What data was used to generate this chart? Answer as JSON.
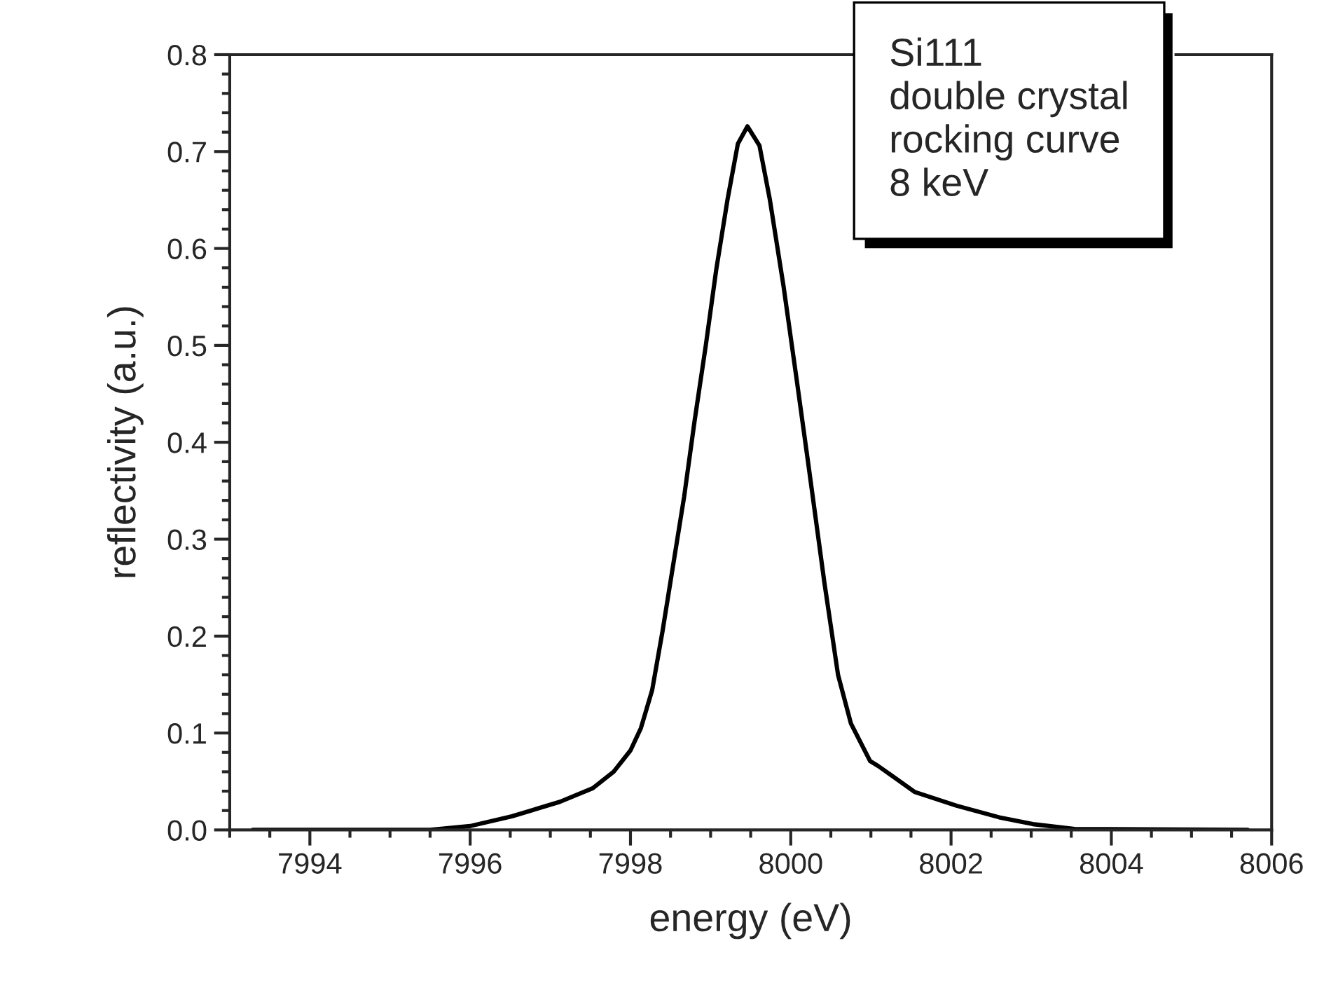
{
  "chart_data": {
    "type": "line",
    "xlabel": "energy (eV)",
    "ylabel": "reflectivity (a.u.)",
    "annotations": [
      "Si111\ndouble crystal\nrocking curve\n8 keV"
    ],
    "xlim": [
      7993,
      8006
    ],
    "xticks": [
      7994,
      7996,
      7998,
      8000,
      8002,
      8004,
      8006
    ],
    "ylim": [
      0,
      0.8
    ],
    "yticks": [
      {
        "value": 0,
        "label": "0.0"
      },
      0.1,
      0.2,
      0.3,
      0.4,
      0.5,
      0.6,
      0.7,
      0.8
    ],
    "grid": false,
    "legend": false,
    "marker": "none",
    "line_style": "solid",
    "series": [
      {
        "color": "#000000",
        "x": [
          7993.29,
          7995.5,
          7996.0,
          7996.52,
          7997.12,
          7997.53,
          7997.79,
          7998.0,
          7998.13,
          7998.27,
          7998.4,
          7998.53,
          7998.67,
          7998.8,
          7998.94,
          7999.07,
          7999.21,
          7999.34,
          7999.46,
          7999.61,
          7999.74,
          7999.91,
          8000.08,
          8000.22,
          8000.42,
          8000.59,
          8000.75,
          8000.99,
          8001.09,
          8001.55,
          8002.07,
          8002.6,
          8003.02,
          8003.54,
          8005.7
        ],
        "values": [
          0.0,
          0.0,
          0.004,
          0.014,
          0.029,
          0.043,
          0.06,
          0.082,
          0.105,
          0.144,
          0.205,
          0.272,
          0.344,
          0.422,
          0.5,
          0.578,
          0.65,
          0.708,
          0.726,
          0.706,
          0.65,
          0.561,
          0.461,
          0.377,
          0.255,
          0.16,
          0.11,
          0.071,
          0.066,
          0.039,
          0.025,
          0.013,
          0.006,
          0.001,
          0.0
        ]
      }
    ]
  }
}
